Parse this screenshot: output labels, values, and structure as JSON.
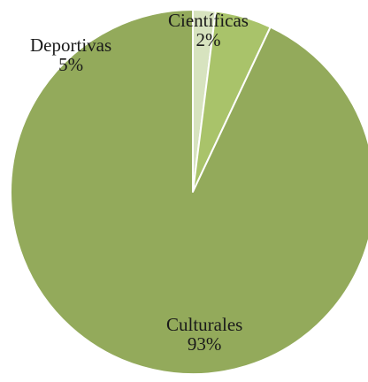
{
  "chart_data": {
    "type": "pie",
    "title": "",
    "slices": [
      {
        "label": "Científicas",
        "value": 2,
        "pct_label": "2%",
        "color": "#d7e3bf"
      },
      {
        "label": "Deportivas",
        "value": 5,
        "pct_label": "5%",
        "color": "#a9c36a"
      },
      {
        "label": "Culturales",
        "value": 93,
        "pct_label": "93%",
        "color": "#93aa5b"
      }
    ],
    "slice_border_color": "#ffffff",
    "legend": "none",
    "data_labels": "category-and-percent"
  }
}
